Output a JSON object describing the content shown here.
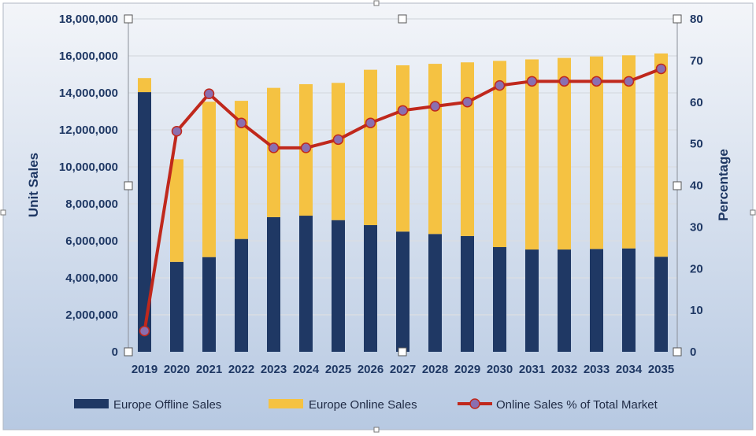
{
  "chart_data": {
    "type": "bar",
    "stacked": true,
    "title": "",
    "categories": [
      "2019",
      "2020",
      "2021",
      "2022",
      "2023",
      "2024",
      "2025",
      "2026",
      "2027",
      "2028",
      "2029",
      "2030",
      "2031",
      "2032",
      "2033",
      "2034",
      "2035"
    ],
    "series": [
      {
        "name": "Europe Offline Sales",
        "type": "bar",
        "axis": "left",
        "color": "#1f3864",
        "values": [
          14040000,
          4860000,
          5120000,
          6100000,
          7280000,
          7360000,
          7120000,
          6850000,
          6500000,
          6370000,
          6260000,
          5660000,
          5530000,
          5530000,
          5560000,
          5590000,
          5140000
        ]
      },
      {
        "name": "Europe Online Sales",
        "type": "bar",
        "axis": "left",
        "color": "#f5c242",
        "values": [
          760000,
          5550000,
          8400000,
          7470000,
          6990000,
          7110000,
          7420000,
          8400000,
          8990000,
          9200000,
          9390000,
          10070000,
          10280000,
          10360000,
          10410000,
          10440000,
          10990000
        ]
      },
      {
        "name": "Online Sales % of Total Market",
        "type": "line",
        "axis": "right",
        "color": "#c0281c",
        "marker_color": "#8a6fb0",
        "values": [
          5,
          53,
          62,
          55,
          49,
          49,
          51,
          55,
          58,
          59,
          60,
          64,
          65,
          65,
          65,
          65,
          68
        ]
      }
    ],
    "ylabel": "Unit Sales",
    "y2label": "Percentage",
    "ylim": [
      0,
      18000000
    ],
    "y2lim": [
      0,
      80
    ],
    "yticks": [
      "0",
      "2,000,000",
      "4,000,000",
      "6,000,000",
      "8,000,000",
      "10,000,000",
      "12,000,000",
      "14,000,000",
      "16,000,000",
      "18,000,000"
    ],
    "y2ticks": [
      "0",
      "10",
      "20",
      "30",
      "40",
      "50",
      "60",
      "70",
      "80"
    ],
    "grid": true,
    "legend": "bottom"
  }
}
